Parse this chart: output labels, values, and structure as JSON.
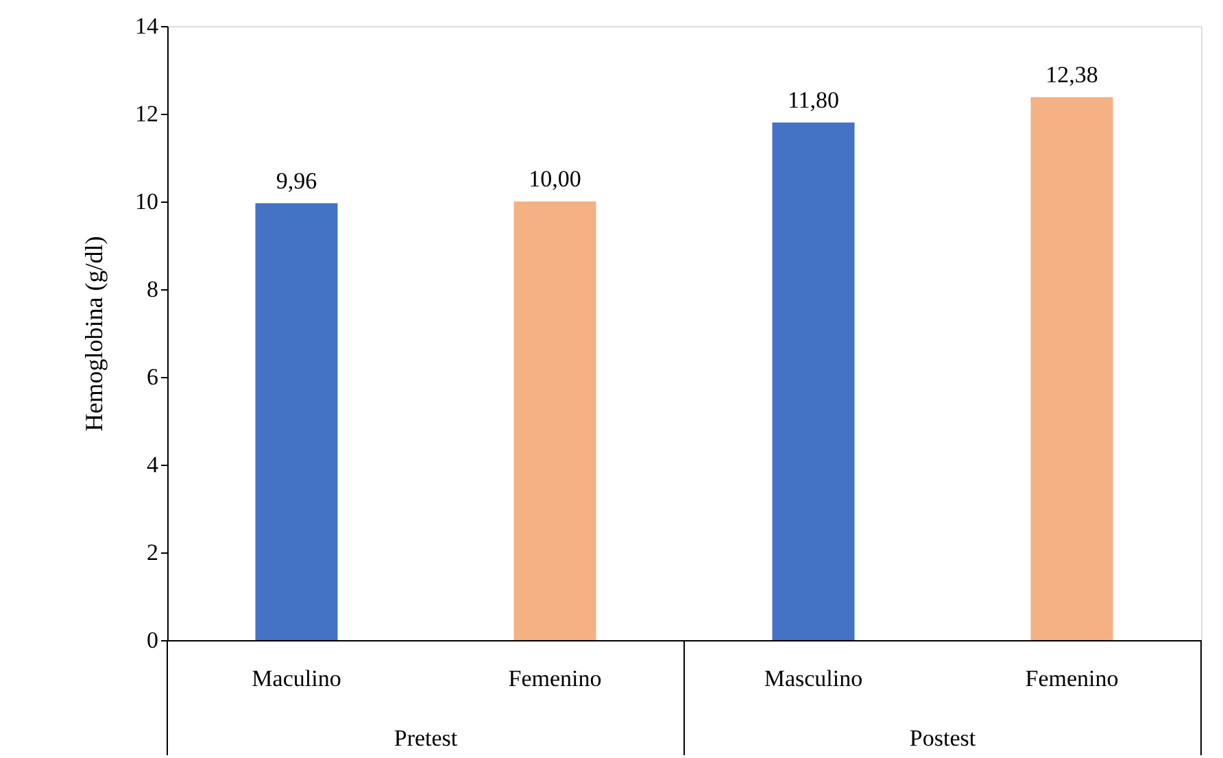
{
  "chart_data": {
    "type": "bar",
    "ylabel": "Hemoglobina (g/dl)",
    "categories": [
      "Maculino",
      "Femenino",
      "Masculino",
      "Femenino"
    ],
    "values": [
      9.96,
      10.0,
      11.8,
      12.38
    ],
    "colors": [
      "#4472c4",
      "#f4b183",
      "#4472c4",
      "#f4b183"
    ],
    "value_labels": [
      "9,96",
      "10,00",
      "11,80",
      "12,38"
    ],
    "annotations": [
      "Pretest",
      "Postest"
    ],
    "ylim": [
      0,
      14
    ],
    "yticks": [
      0,
      2,
      4,
      6,
      8,
      10,
      12,
      14
    ],
    "grid": false
  }
}
